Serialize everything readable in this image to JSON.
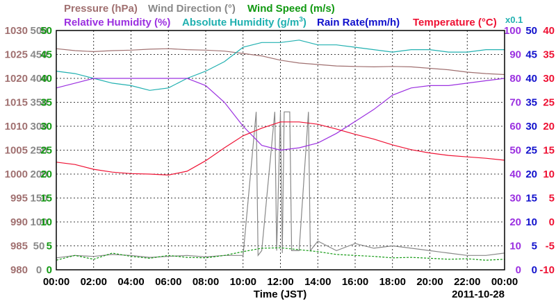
{
  "colors": {
    "pressure": "#a07070",
    "wind_direction": "#888888",
    "wind_speed": "#119911",
    "humidity": "#9b30e0",
    "abs_humidity": "#20b0b0",
    "rain_rate": "#1111cc",
    "temperature": "#ee1133"
  },
  "legend": {
    "pressure": "Pressure (hPa)",
    "wind_direction": "Wind Direction (°)",
    "wind_speed": "Wind Speed (m/s)",
    "humidity": "Relative Humidity (%)",
    "abs_humidity_prefix": "Absolute Humidity (g/m",
    "abs_humidity_sup": "3",
    "abs_humidity_suffix": ")",
    "rain_rate": "Rain Rate(mm/h)",
    "temperature": "Temperature (°C)",
    "abs_humidity_multiplier": "x0.1"
  },
  "xlabel": "Time (JST)",
  "date": "2011-10-28",
  "chart_data": {
    "type": "line",
    "x_ticks": [
      "00:00",
      "02:00",
      "04:00",
      "06:00",
      "08:00",
      "10:00",
      "12:00",
      "14:00",
      "16:00",
      "18:00",
      "20:00",
      "22:00",
      "00:00"
    ],
    "axes": {
      "pressure": {
        "ticks": [
          "980",
          "985",
          "990",
          "995",
          "1000",
          "1005",
          "1010",
          "1015",
          "1020",
          "1025",
          "1030"
        ],
        "range": [
          980,
          1030
        ]
      },
      "wind_direction": {
        "ticks": [
          "0",
          "50",
          "100",
          "150",
          "200",
          "250",
          "300",
          "350",
          "400",
          "450",
          "500"
        ],
        "range": [
          0,
          500
        ]
      },
      "wind_speed": {
        "ticks": [
          "0",
          "5",
          "10",
          "15",
          "20",
          "25",
          "30",
          "35",
          "40",
          "45",
          "50"
        ],
        "range": [
          0,
          50
        ]
      },
      "humidity": {
        "ticks": [
          "0",
          "10",
          "20",
          "30",
          "40",
          "50",
          "60",
          "70",
          "80",
          "90",
          "100"
        ],
        "range": [
          0,
          100
        ]
      },
      "rain_rate": {
        "ticks": [
          "0",
          "5",
          "10",
          "15",
          "20",
          "25",
          "30",
          "35",
          "40",
          "45",
          "50"
        ],
        "range": [
          0,
          50
        ]
      },
      "temperature": {
        "ticks": [
          "-10",
          "-5",
          "0",
          "5",
          "10",
          "15",
          "20",
          "25",
          "30",
          "35",
          "40"
        ],
        "range": [
          -10,
          40
        ]
      }
    },
    "series": [
      {
        "name": "Pressure (hPa)",
        "axis": "pressure",
        "x": [
          0,
          1,
          2,
          3,
          4,
          5,
          6,
          7,
          8,
          9,
          10,
          11,
          12,
          13,
          14,
          15,
          16,
          17,
          18,
          19,
          20,
          21,
          22,
          23,
          24
        ],
        "y": [
          1026.2,
          1025.8,
          1025.6,
          1025.8,
          1025.9,
          1026.1,
          1026.2,
          1026.0,
          1025.9,
          1025.7,
          1025.2,
          1024.7,
          1023.8,
          1023.2,
          1022.9,
          1022.6,
          1022.5,
          1022.4,
          1022.5,
          1022.4,
          1022.1,
          1021.8,
          1021.3,
          1021.0,
          1020.8
        ]
      },
      {
        "name": "Relative Humidity (%)",
        "axis": "humidity",
        "x": [
          0,
          1,
          2,
          3,
          4,
          5,
          6,
          7,
          8,
          9,
          10,
          11,
          12,
          13,
          14,
          15,
          16,
          17,
          18,
          19,
          20,
          21,
          22,
          23,
          24
        ],
        "y": [
          76,
          78,
          80,
          80,
          80,
          80,
          80,
          80,
          77,
          70,
          60,
          52,
          50,
          51,
          53,
          57,
          62,
          67,
          73,
          76,
          77,
          77,
          78,
          79,
          80
        ]
      },
      {
        "name": "Absolute Humidity (x0.1)",
        "axis": "humidity",
        "x": [
          0,
          1,
          2,
          3,
          4,
          5,
          6,
          7,
          8,
          9,
          10,
          11,
          12,
          13,
          14,
          15,
          16,
          17,
          18,
          19,
          20,
          21,
          22,
          23,
          24
        ],
        "y": [
          83,
          82,
          80,
          78,
          77,
          75,
          76,
          80,
          83,
          87,
          93,
          95,
          95,
          96,
          94,
          94,
          93,
          92,
          91,
          92,
          92,
          91,
          91,
          92,
          92
        ]
      },
      {
        "name": "Temperature (°C)",
        "axis": "temperature",
        "x": [
          0,
          1,
          2,
          3,
          4,
          5,
          6,
          7,
          8,
          9,
          10,
          11,
          12,
          13,
          14,
          15,
          16,
          17,
          18,
          19,
          20,
          21,
          22,
          23,
          24
        ],
        "y": [
          12.5,
          12.0,
          11.0,
          10.4,
          10.1,
          10.0,
          9.8,
          10.6,
          12.8,
          15.5,
          18.0,
          19.6,
          20.9,
          20.9,
          20.4,
          19.4,
          18.3,
          17.3,
          16.1,
          15.1,
          14.4,
          13.9,
          13.6,
          13.3,
          12.9
        ]
      },
      {
        "name": "Wind Direction (°)",
        "axis": "wind_direction",
        "x": [
          0,
          1,
          2,
          3,
          4,
          5,
          6,
          7,
          8,
          9,
          10,
          10.7,
          10.8,
          11,
          11.7,
          11.8,
          12,
          12.1,
          12.2,
          12.5,
          12.6,
          13,
          13.5,
          13.6,
          14,
          15,
          16,
          17,
          18,
          19,
          20,
          21,
          22,
          23,
          24
        ],
        "y": [
          25,
          30,
          28,
          32,
          30,
          26,
          28,
          30,
          27,
          30,
          30,
          330,
          30,
          40,
          330,
          40,
          330,
          35,
          330,
          330,
          40,
          40,
          330,
          40,
          60,
          40,
          55,
          45,
          50,
          45,
          40,
          35,
          30,
          30,
          35
        ]
      },
      {
        "name": "Wind Speed (m/s)",
        "axis": "wind_speed",
        "x": [
          0,
          1,
          2,
          3,
          4,
          5,
          6,
          7,
          8,
          9,
          10,
          11,
          12,
          13,
          14,
          15,
          16,
          17,
          18,
          19,
          20,
          21,
          22,
          23,
          24
        ],
        "y": [
          2.0,
          3.0,
          2.2,
          3.5,
          2.8,
          2.4,
          3.0,
          2.6,
          2.5,
          3.0,
          3.8,
          4.5,
          4.6,
          4.2,
          3.8,
          3.2,
          3.0,
          2.8,
          2.5,
          2.6,
          2.4,
          2.2,
          2.3,
          2.0,
          2.2
        ]
      }
    ],
    "grid": true
  }
}
